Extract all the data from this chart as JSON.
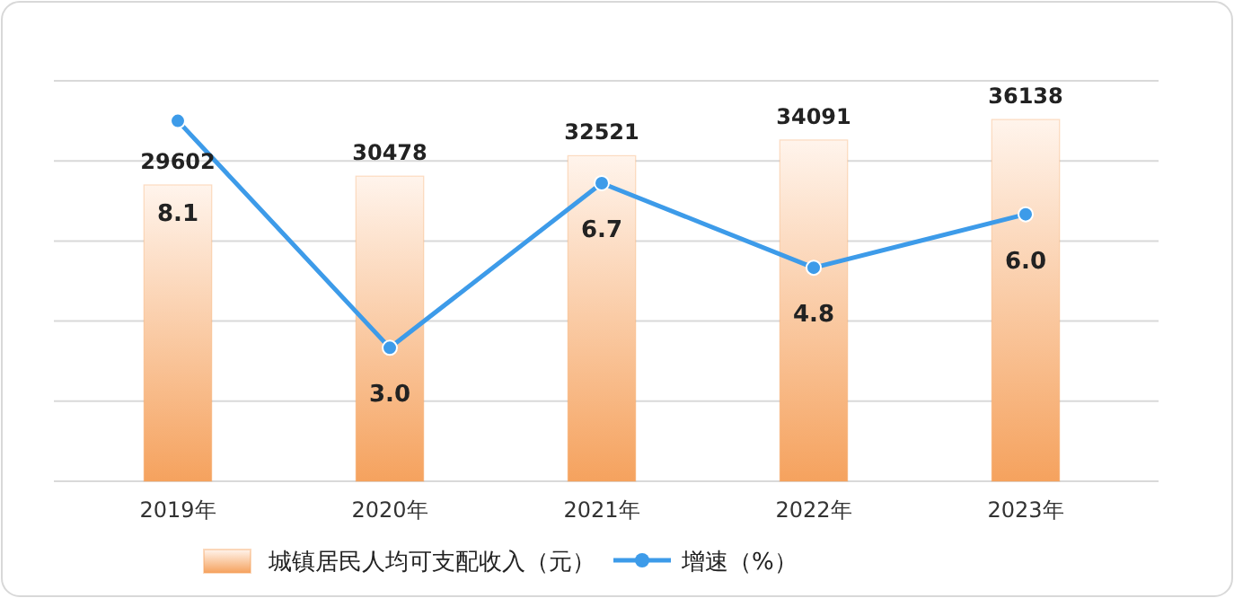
{
  "chart_data": {
    "type": "bar",
    "categories": [
      "2019年",
      "2020年",
      "2021年",
      "2022年",
      "2023年"
    ],
    "series": [
      {
        "name": "城镇居民人均可支配收入（元）",
        "color": "#f5a25e",
        "values": [
          29602,
          30478,
          32521,
          34091,
          36138
        ]
      },
      {
        "name": "增速（%）",
        "type": "line",
        "axis": "y2",
        "color": "#3d9be9",
        "values": [
          8.1,
          3.0,
          6.7,
          4.8,
          6.0
        ],
        "value_labels": [
          "8.1",
          "3.0",
          "6.7",
          "4.8",
          "6.0"
        ]
      }
    ],
    "ylim": [
      0,
      40000
    ],
    "yticks": [
      {
        "value": 0,
        "label": null
      },
      {
        "value": 8000,
        "label": null
      },
      {
        "value": 16000,
        "label": null
      },
      {
        "value": 24000,
        "label": null
      },
      {
        "value": 32000,
        "label": null
      },
      {
        "value": 40000,
        "label": null
      }
    ],
    "y2lim": [
      0,
      9
    ],
    "tick_labels": "x",
    "grid": "y",
    "data_labels": true,
    "legend": "bottom",
    "marker": "circle",
    "line_style": "solid"
  }
}
